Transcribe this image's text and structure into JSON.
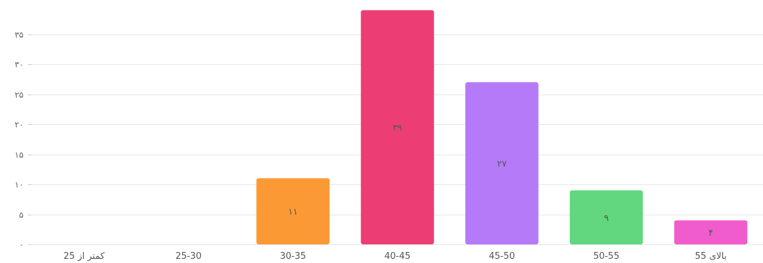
{
  "chart_data": {
    "type": "bar",
    "categories": [
      "کمتر از 25",
      "25-30",
      "30-35",
      "40-45",
      "45-50",
      "50-55",
      "بالای 55"
    ],
    "values": [
      0,
      0,
      11,
      39,
      27,
      9,
      4
    ],
    "value_labels": [
      "",
      "",
      "۱۱",
      "۳۹",
      "۲۷",
      "۹",
      "۴"
    ],
    "colors": [
      "#9e9e9e",
      "#9e9e9e",
      "#fb9a34",
      "#ec3e74",
      "#b57af7",
      "#62d77f",
      "#f05ccc"
    ],
    "ylim": [
      0,
      40
    ],
    "y_ticks": [
      {
        "value": 0,
        "label": "۰"
      },
      {
        "value": 5,
        "label": "۵"
      },
      {
        "value": 10,
        "label": "۱۰"
      },
      {
        "value": 15,
        "label": "۱۵"
      },
      {
        "value": 20,
        "label": "۲۰"
      },
      {
        "value": 25,
        "label": "۲۵"
      },
      {
        "value": 30,
        "label": "۳۰"
      },
      {
        "value": 35,
        "label": "۳۵"
      }
    ],
    "grid": true,
    "legend": "none"
  }
}
